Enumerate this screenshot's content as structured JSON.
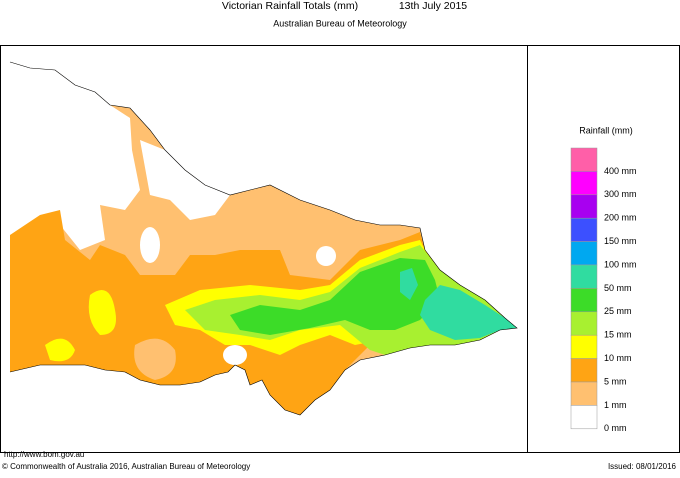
{
  "header": {
    "title": "Victorian Rainfall Totals (mm)",
    "date": "13th July 2015",
    "subtitle": "Australian Bureau of Meteorology"
  },
  "legend": {
    "title": "Rainfall (mm)",
    "items": [
      {
        "label": "400 mm",
        "color": "#ff5fa8"
      },
      {
        "label": "300 mm",
        "color": "#ff00ff"
      },
      {
        "label": "200 mm",
        "color": "#a800f0"
      },
      {
        "label": "150 mm",
        "color": "#3c50ff"
      },
      {
        "label": "100 mm",
        "color": "#00a8f0"
      },
      {
        "label": "50 mm",
        "color": "#30dca0"
      },
      {
        "label": "25 mm",
        "color": "#3cdc28"
      },
      {
        "label": "15 mm",
        "color": "#a8f030"
      },
      {
        "label": "10 mm",
        "color": "#ffff00"
      },
      {
        "label": "5 mm",
        "color": "#ffa414"
      },
      {
        "label": "1 mm",
        "color": "#ffc070"
      },
      {
        "label": "0 mm",
        "color": "#ffffff"
      }
    ]
  },
  "footer": {
    "url": "http://www.bom.gov.au",
    "copyright": "© Commonwealth of Australia 2016, Australian Bureau of Meteorology",
    "issued": "Issued: 08/01/2016"
  }
}
